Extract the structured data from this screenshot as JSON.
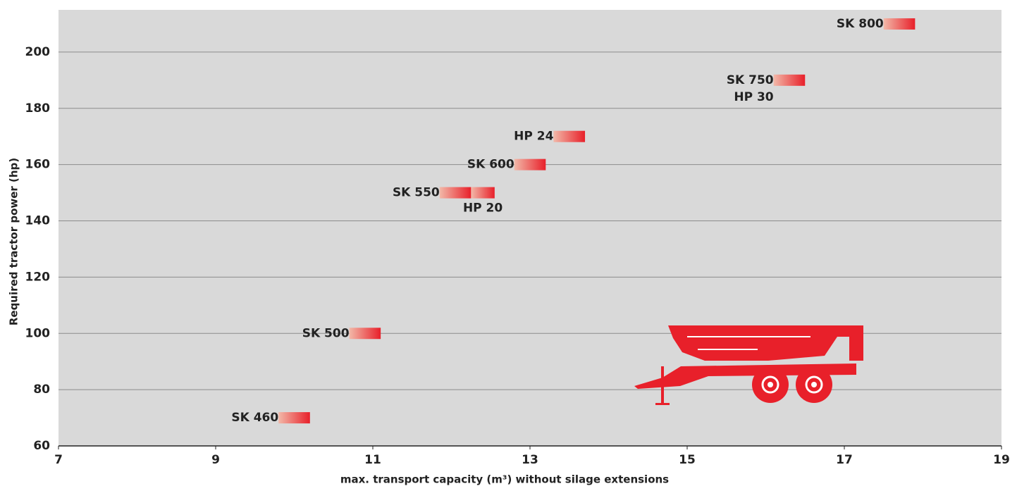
{
  "chart_data": {
    "type": "range",
    "x_label": "max. transport capacity (m³) without silage extensions",
    "y_label": "Required tractor power (hp)",
    "xlim": [
      7,
      19
    ],
    "xticks": [
      7,
      9,
      11,
      13,
      15,
      17,
      19
    ],
    "ylim": [
      60,
      215
    ],
    "yticks": [
      60,
      80,
      100,
      120,
      140,
      160,
      180,
      200
    ],
    "grid": true,
    "color": "#e8202a",
    "items": [
      {
        "names": [
          "SK 460"
        ],
        "y": 70,
        "x": [
          9.8,
          10.2
        ]
      },
      {
        "names": [
          "SK 500"
        ],
        "y": 100,
        "x": [
          10.7,
          11.1
        ]
      },
      {
        "names": [
          "SK 550"
        ],
        "y": 150,
        "x": [
          11.85,
          12.25
        ]
      },
      {
        "names": [
          "HP 20"
        ],
        "y": 150,
        "x": [
          12.25,
          12.55
        ],
        "label_position": "below"
      },
      {
        "names": [
          "SK 600"
        ],
        "y": 160,
        "x": [
          12.8,
          13.2
        ]
      },
      {
        "names": [
          "HP 24"
        ],
        "y": 170,
        "x": [
          13.3,
          13.7
        ]
      },
      {
        "names": [
          "SK 750",
          "HP 30"
        ],
        "y": 190,
        "x": [
          16.1,
          16.5
        ]
      },
      {
        "names": [
          "SK 800"
        ],
        "y": 210,
        "x": [
          17.5,
          17.9
        ]
      }
    ]
  }
}
